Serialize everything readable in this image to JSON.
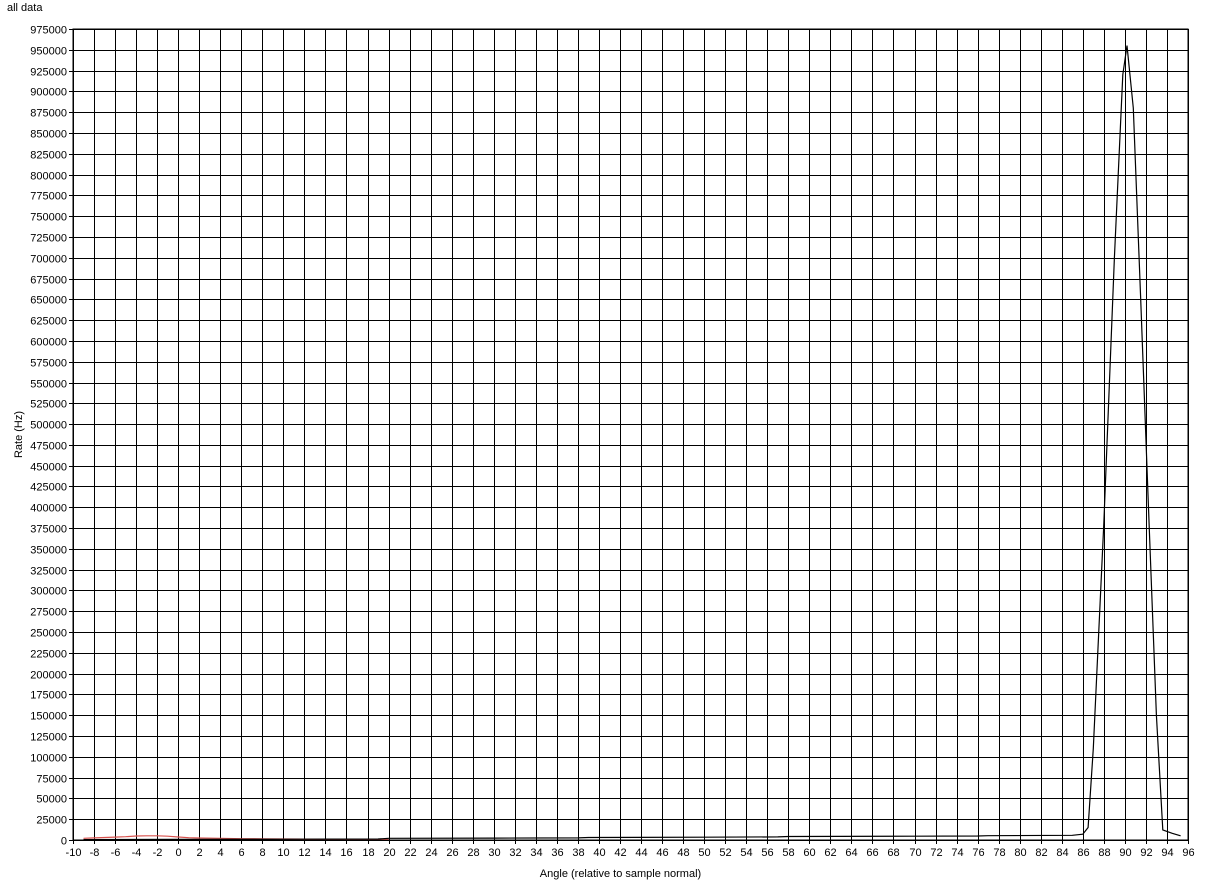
{
  "chart_data": {
    "type": "line",
    "title": "all data",
    "xlabel": "Angle (relative to sample normal)",
    "ylabel": "Rate (Hz)",
    "xlim": [
      -10,
      96
    ],
    "ylim": [
      0,
      975000
    ],
    "x_tick_step": 2,
    "y_tick_step": 25000,
    "grid": true,
    "series": [
      {
        "color": "#d9534f",
        "points": [
          [
            -9,
            2000
          ],
          [
            -8,
            2500
          ],
          [
            -6,
            3500
          ],
          [
            -5,
            4000
          ],
          [
            -4,
            4800
          ],
          [
            -3,
            5000
          ],
          [
            -2,
            5000
          ],
          [
            -1,
            4600
          ],
          [
            0,
            3600
          ],
          [
            1,
            2800
          ],
          [
            2,
            2400
          ],
          [
            4,
            2000
          ],
          [
            6,
            1600
          ],
          [
            8,
            1400
          ],
          [
            10,
            1200
          ],
          [
            12,
            1100
          ],
          [
            14,
            1000
          ],
          [
            16,
            1000
          ],
          [
            18,
            1000
          ],
          [
            20,
            1000
          ]
        ]
      },
      {
        "color": "#000000",
        "points": [
          [
            -9,
            500
          ],
          [
            0,
            800
          ],
          [
            10,
            1000
          ],
          [
            19,
            1200
          ],
          [
            20,
            2000
          ],
          [
            30,
            2300
          ],
          [
            38,
            2500
          ],
          [
            39,
            3000
          ],
          [
            50,
            3400
          ],
          [
            57,
            3700
          ],
          [
            58,
            4200
          ],
          [
            70,
            4600
          ],
          [
            76,
            4800
          ],
          [
            77,
            5200
          ],
          [
            85,
            5600
          ],
          [
            86,
            7000
          ],
          [
            86.5,
            15000
          ],
          [
            87,
            110000
          ],
          [
            88,
            380000
          ],
          [
            89,
            700000
          ],
          [
            89.8,
            920000
          ],
          [
            90.2,
            955000
          ],
          [
            90.8,
            880000
          ],
          [
            91.5,
            650000
          ],
          [
            92.3,
            380000
          ],
          [
            93,
            150000
          ],
          [
            93.6,
            12000
          ],
          [
            94.5,
            8000
          ],
          [
            95.3,
            5000
          ]
        ]
      }
    ]
  }
}
